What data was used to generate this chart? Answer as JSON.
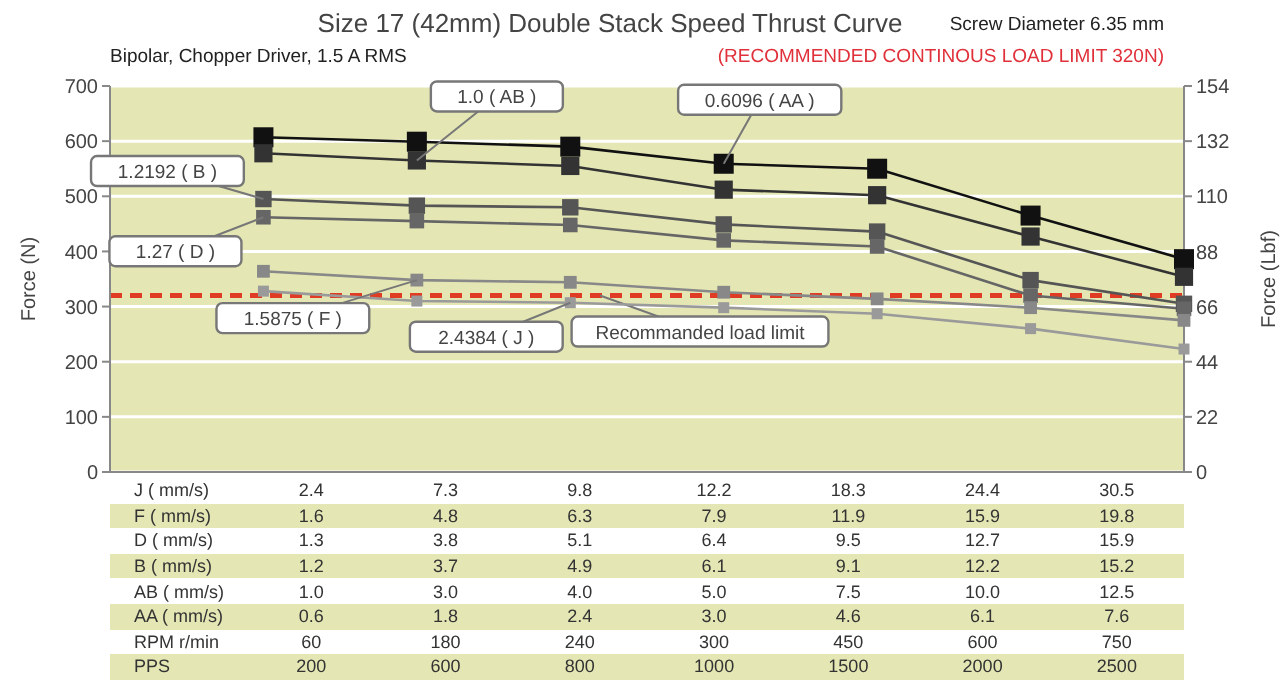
{
  "chart_data": {
    "type": "line",
    "title": "Size 17 (42mm) Double Stack Speed Thrust Curve",
    "subtitle": "Bipolar, Chopper Driver, 1.5 A RMS",
    "ylabel": "Force (N)",
    "y2label": "Force (Lbf)",
    "categories": [
      null,
      null,
      null,
      null,
      null,
      null,
      null,
      null
    ],
    "series": [
      {
        "name": "0.6096 ( AA )",
        "color": "#111111",
        "values": [
          null,
          607,
          599,
          590,
          559,
          550,
          465,
          386
        ]
      },
      {
        "name": "1.0 ( AB )",
        "color": "#333333",
        "values": [
          null,
          578,
          565,
          555,
          512,
          502,
          427,
          354
        ]
      },
      {
        "name": "1.2192 ( B )",
        "color": "#555555",
        "values": [
          null,
          495,
          483,
          480,
          449,
          436,
          348,
          305
        ]
      },
      {
        "name": "1.27 ( D )",
        "color": "#666666",
        "values": [
          null,
          462,
          455,
          448,
          420,
          409,
          320,
          296
        ]
      },
      {
        "name": "1.5875 ( F )",
        "color": "#888888",
        "values": [
          null,
          364,
          348,
          344,
          326,
          314,
          298,
          275
        ]
      },
      {
        "name": "2.4384 ( J )",
        "color": "#9a9a9a",
        "values": [
          null,
          328,
          310,
          307,
          298,
          287,
          260,
          223
        ]
      }
    ],
    "ylim": [
      0,
      700
    ],
    "yticks": [
      0,
      100,
      200,
      300,
      400,
      500,
      600,
      700
    ],
    "y2lim": [
      0,
      154
    ],
    "y2ticks": [
      0,
      22,
      44,
      66,
      88,
      110,
      132,
      154
    ],
    "ref_lines": [
      {
        "axis": "y",
        "value": 320,
        "label": "Recommanded load limit",
        "color": "#e03c24",
        "line_style": "dashed"
      }
    ],
    "grid": "y",
    "marker": "square",
    "line_style": "solid",
    "legend": false,
    "annotations": [
      "Screw Diameter 6.35 mm",
      "(RECOMMENDED CONTINOUS LOAD LIMIT 320N)",
      "J ( mm/s)",
      "2.4",
      "7.3",
      "9.8",
      "12.2",
      "18.3",
      "24.4",
      "30.5",
      "F ( mm/s)",
      "1.6",
      "4.8",
      "6.3",
      "7.9",
      "11.9",
      "15.9",
      "19.8",
      "D ( mm/s)",
      "1.3",
      "3.8",
      "5.1",
      "6.4",
      "9.5",
      "12.7",
      "15.9",
      "B ( mm/s)",
      "1.2",
      "3.7",
      "4.9",
      "6.1",
      "9.1",
      "12.2",
      "15.2",
      "AB ( mm/s)",
      "1.0",
      "3.0",
      "4.0",
      "5.0",
      "7.5",
      "10.0",
      "12.5",
      "AA ( mm/s)",
      "0.6",
      "1.8",
      "2.4",
      "3.0",
      "4.6",
      "6.1",
      "7.6",
      "RPM r/min",
      "60",
      "180",
      "240",
      "300",
      "450",
      "600",
      "750",
      "PPS",
      "200",
      "600",
      "800",
      "1000",
      "1500",
      "2000",
      "2500"
    ]
  }
}
